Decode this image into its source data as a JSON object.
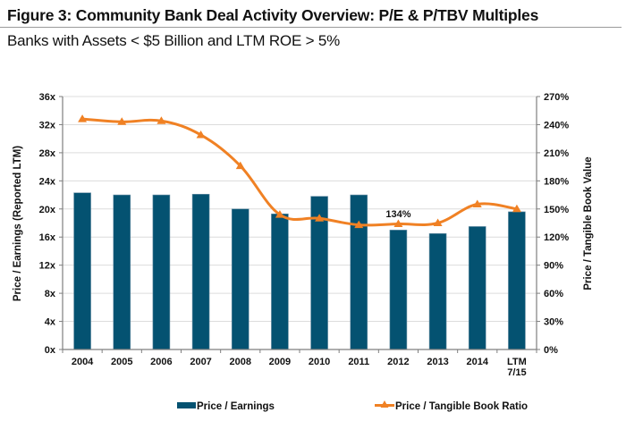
{
  "header": {
    "title": "Figure 3: Community Bank Deal Activity Overview: P/E & P/TBV Multiples",
    "subtitle": "Banks with Assets < $5 Billion and LTM ROE > 5%"
  },
  "colors": {
    "bar": "#045271",
    "line": "#F08124",
    "grid": "#dcdcdc",
    "axis": "#7f7f7f"
  },
  "chart_data": {
    "type": "bar",
    "title": "Figure 3: Community Bank Deal Activity Overview: P/E & P/TBV Multiples",
    "subtitle": "Banks with Assets < $5 Billion and LTM ROE > 5%",
    "categories": [
      "2004",
      "2005",
      "2006",
      "2007",
      "2008",
      "2009",
      "2010",
      "2011",
      "2012",
      "2013",
      "2014",
      "LTM\n7/15"
    ],
    "category_lines": [
      [
        "2004"
      ],
      [
        "2005"
      ],
      [
        "2006"
      ],
      [
        "2007"
      ],
      [
        "2008"
      ],
      [
        "2009"
      ],
      [
        "2010"
      ],
      [
        "2011"
      ],
      [
        "2012"
      ],
      [
        "2013"
      ],
      [
        "2014"
      ],
      [
        "LTM",
        "7/15"
      ]
    ],
    "series": [
      {
        "name": "Price / Earnings",
        "type": "bar",
        "axis": "left",
        "values": [
          22.3,
          22.0,
          22.0,
          22.1,
          20.0,
          19.3,
          21.8,
          22.0,
          17.0,
          16.5,
          17.5,
          19.6
        ]
      },
      {
        "name": "Price / Tangible Book Ratio",
        "type": "line",
        "marker": "triangle",
        "axis": "right",
        "values": [
          246,
          243,
          244,
          229,
          196,
          144,
          140,
          133,
          134,
          135,
          155,
          150
        ]
      }
    ],
    "annotations": [
      {
        "category": "2012",
        "text": "134%"
      }
    ],
    "y_left": {
      "label": "Price / Earnings (Reported LTM)",
      "range": [
        0,
        36
      ],
      "ticks": [
        0,
        4,
        8,
        12,
        16,
        20,
        24,
        28,
        32,
        36
      ],
      "tick_labels": [
        "0x",
        "4x",
        "8x",
        "12x",
        "16x",
        "20x",
        "24x",
        "28x",
        "32x",
        "36x"
      ]
    },
    "y_right": {
      "label": "Price / Tangible Book Value",
      "range": [
        0,
        270
      ],
      "ticks": [
        0,
        30,
        60,
        90,
        120,
        150,
        180,
        210,
        240,
        270
      ],
      "tick_labels": [
        "0%",
        "30%",
        "60%",
        "90%",
        "120%",
        "150%",
        "180%",
        "210%",
        "240%",
        "270%"
      ]
    },
    "xlabel": "",
    "grid": true,
    "legend_position": "bottom"
  }
}
